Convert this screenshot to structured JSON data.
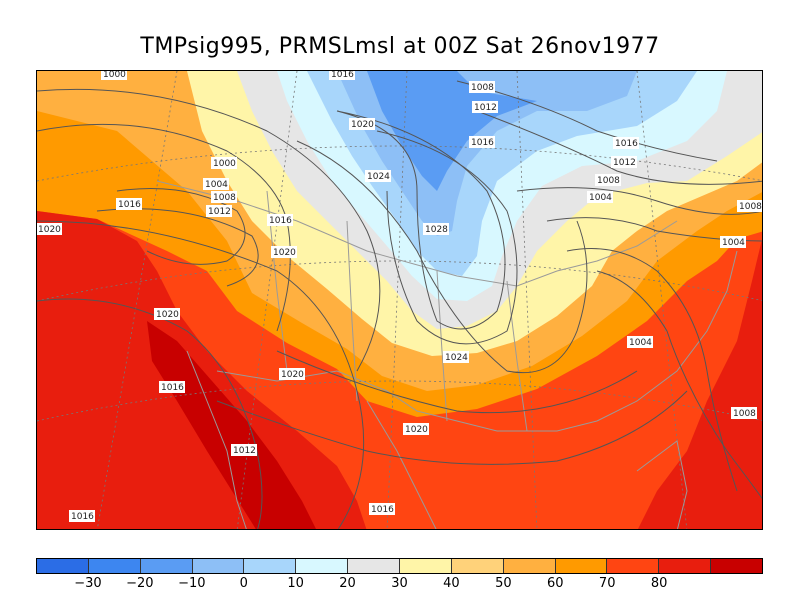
{
  "title": "TMPsig995, PRMSLmsl at 00Z Sat 26nov1977",
  "colorbar": {
    "colors": [
      "#2b6de6",
      "#3d86f0",
      "#5a9cf3",
      "#8dbff6",
      "#a8d6fb",
      "#d8f8ff",
      "#e6e6e6",
      "#fff5a8",
      "#ffd27a",
      "#ffb040",
      "#ff9a00",
      "#ff4512",
      "#e81e0e",
      "#c80000"
    ],
    "ticks": [
      "−30",
      "−20",
      "−10",
      "0",
      "10",
      "20",
      "30",
      "40",
      "50",
      "60",
      "70",
      "80"
    ]
  },
  "isobar_labels": [
    {
      "text": "1000"
    },
    {
      "text": "1016"
    },
    {
      "text": "1008"
    },
    {
      "text": "1012"
    },
    {
      "text": "1020"
    },
    {
      "text": "1016"
    },
    {
      "text": "1016"
    },
    {
      "text": "1012"
    },
    {
      "text": "1008"
    },
    {
      "text": "1004"
    },
    {
      "text": "1000"
    },
    {
      "text": "1004"
    },
    {
      "text": "1008"
    },
    {
      "text": "1012"
    },
    {
      "text": "1016"
    },
    {
      "text": "1024"
    },
    {
      "text": "1028"
    },
    {
      "text": "1016"
    },
    {
      "text": "1020"
    },
    {
      "text": "1020"
    },
    {
      "text": "1008"
    },
    {
      "text": "1004"
    },
    {
      "text": "1020"
    },
    {
      "text": "1024"
    },
    {
      "text": "1004"
    },
    {
      "text": "1016"
    },
    {
      "text": "1020"
    },
    {
      "text": "1012"
    },
    {
      "text": "1020"
    },
    {
      "text": "1008"
    },
    {
      "text": "1016"
    },
    {
      "text": "1016"
    }
  ]
}
